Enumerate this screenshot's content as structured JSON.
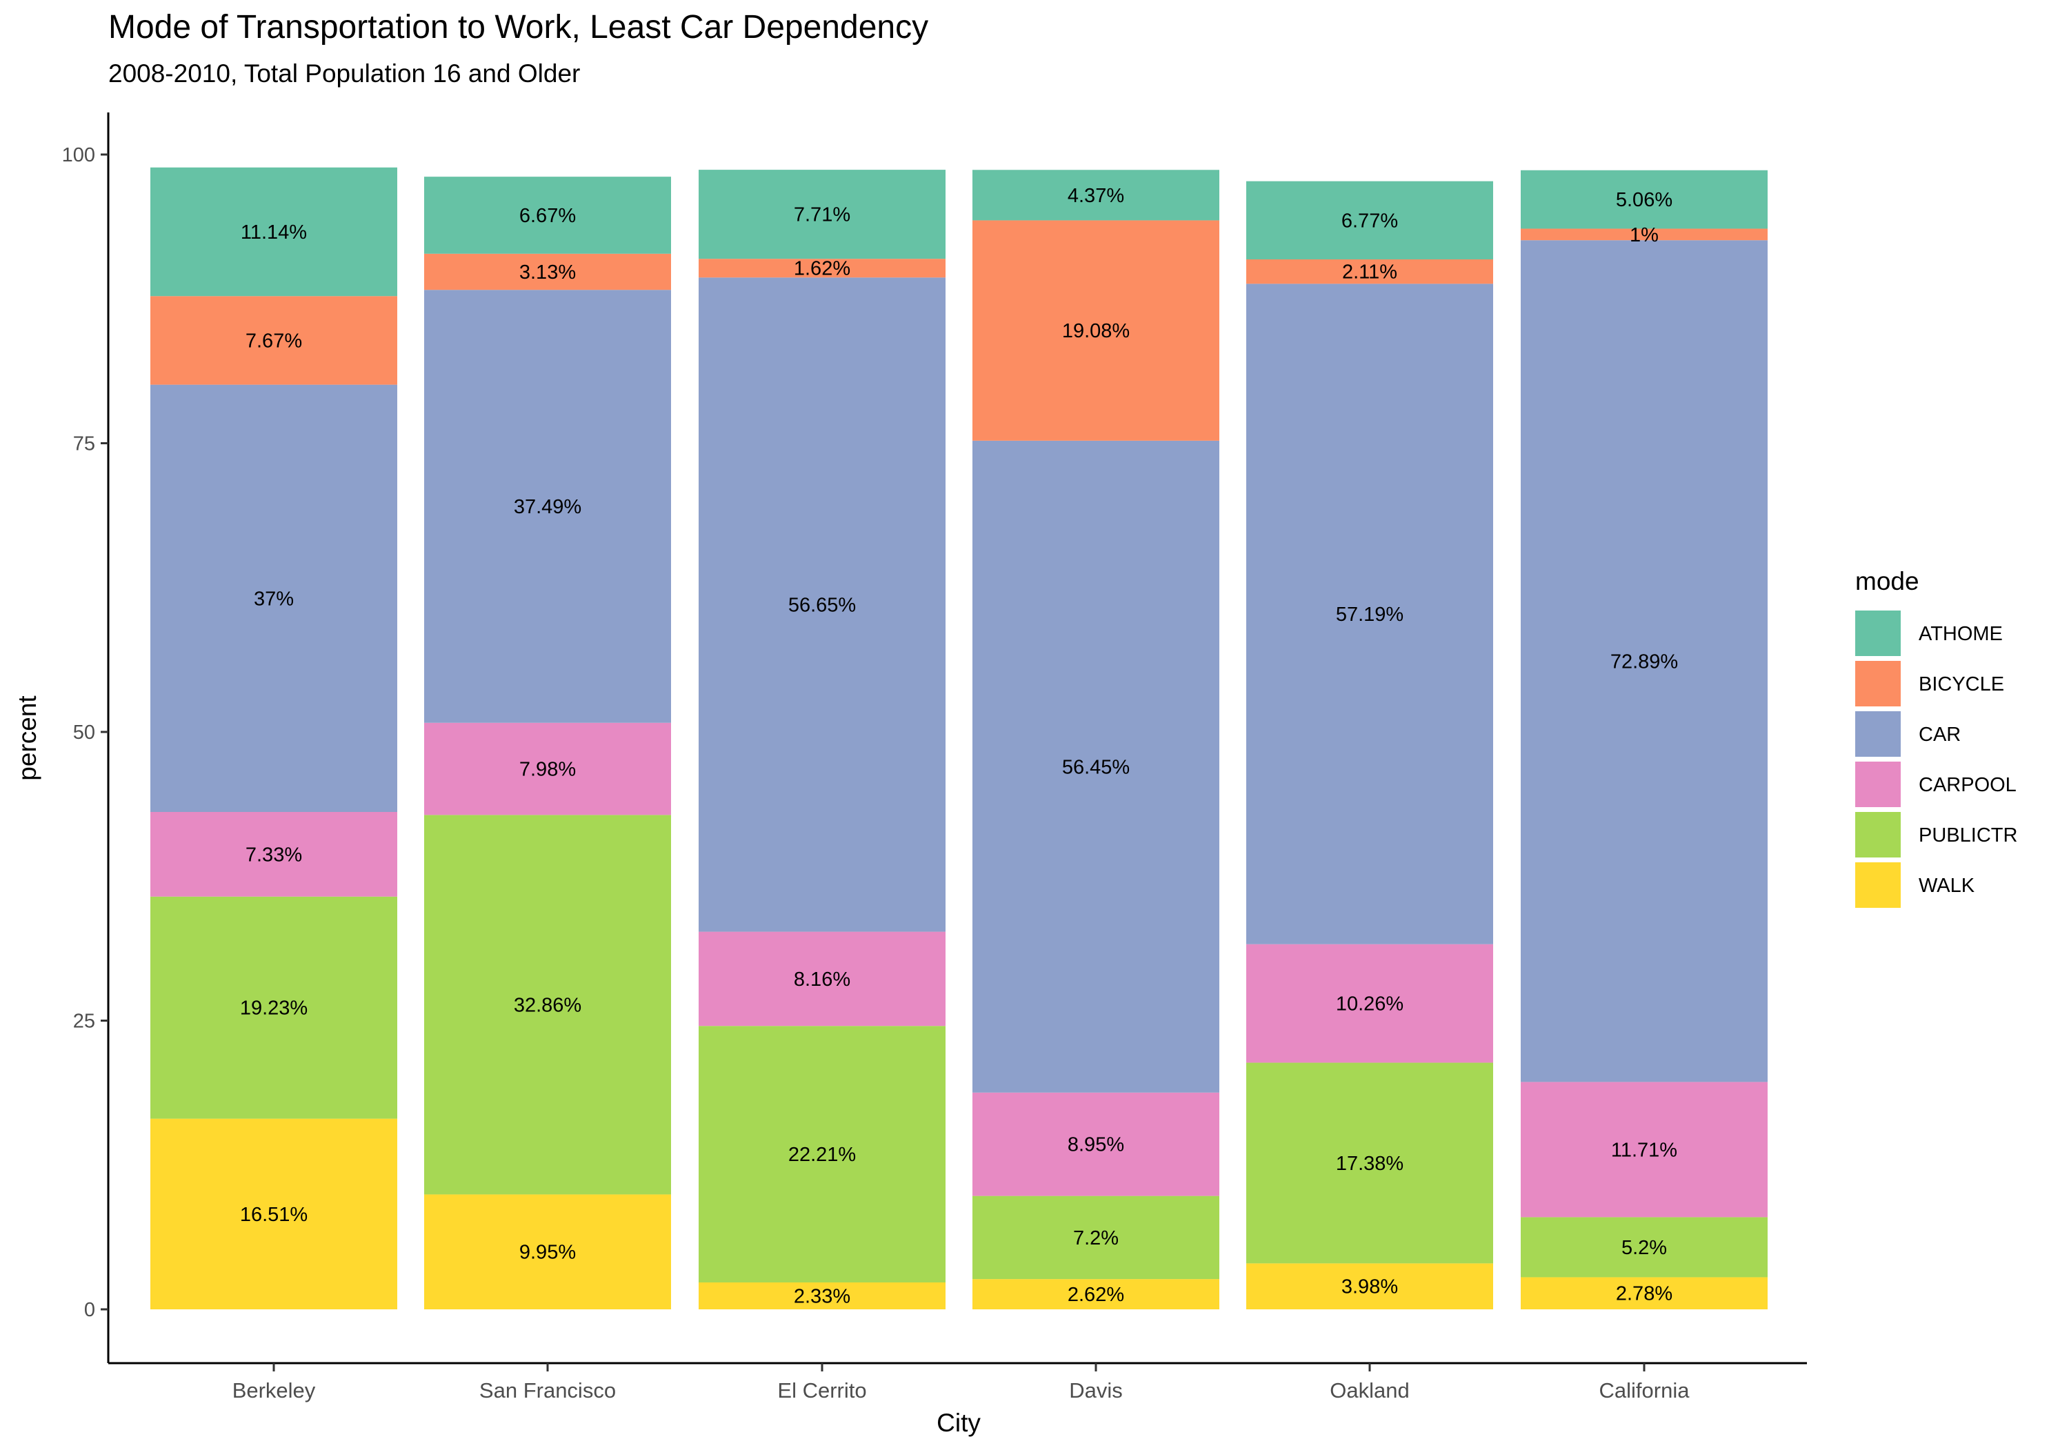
{
  "chart_data": {
    "type": "bar",
    "stacked": true,
    "title": "Mode of Transportation to Work, Least Car Dependency",
    "subtitle": "2008-2010, Total Population 16 and Older",
    "xlabel": "City",
    "ylabel": "percent",
    "ylim": [
      0,
      100
    ],
    "yticks": [
      0,
      25,
      50,
      75,
      100
    ],
    "grid": false,
    "legend": {
      "title": "mode",
      "placement": "right"
    },
    "categories": [
      "Berkeley",
      "San Francisco",
      "El Cerrito",
      "Davis",
      "Oakland",
      "California"
    ],
    "series": [
      {
        "name": "WALK",
        "color": "#FFD92F",
        "values": [
          16.51,
          9.95,
          2.33,
          2.62,
          3.98,
          2.78
        ],
        "labels": [
          "16.51%",
          "9.95%",
          "2.33%",
          "2.62%",
          "3.98%",
          "2.78%"
        ]
      },
      {
        "name": "PUBLICTR",
        "color": "#A6D854",
        "values": [
          19.23,
          32.86,
          22.21,
          7.2,
          17.38,
          5.2
        ],
        "labels": [
          "19.23%",
          "32.86%",
          "22.21%",
          "7.2%",
          "17.38%",
          "5.2%"
        ]
      },
      {
        "name": "CARPOOL",
        "color": "#E78AC3",
        "values": [
          7.33,
          7.98,
          8.16,
          8.95,
          10.26,
          11.71
        ],
        "labels": [
          "7.33%",
          "7.98%",
          "8.16%",
          "8.95%",
          "10.26%",
          "11.71%"
        ]
      },
      {
        "name": "CAR",
        "color": "#8DA0CB",
        "values": [
          37,
          37.49,
          56.65,
          56.45,
          57.19,
          72.89
        ],
        "labels": [
          "37%",
          "37.49%",
          "56.65%",
          "56.45%",
          "57.19%",
          "72.89%"
        ]
      },
      {
        "name": "BICYCLE",
        "color": "#FC8D62",
        "values": [
          7.67,
          3.13,
          1.62,
          19.08,
          2.11,
          1
        ],
        "labels": [
          "7.67%",
          "3.13%",
          "1.62%",
          "19.08%",
          "2.11%",
          "1%"
        ]
      },
      {
        "name": "ATHOME",
        "color": "#66C2A5",
        "values": [
          11.14,
          6.67,
          7.71,
          4.37,
          6.77,
          5.06
        ],
        "labels": [
          "11.14%",
          "6.67%",
          "7.71%",
          "4.37%",
          "6.77%",
          "5.06%"
        ]
      }
    ],
    "legend_order": [
      "ATHOME",
      "BICYCLE",
      "CAR",
      "CARPOOL",
      "PUBLICTR",
      "WALK"
    ]
  }
}
